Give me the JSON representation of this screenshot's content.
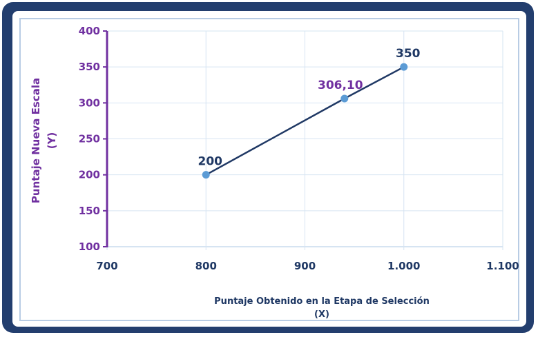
{
  "chart_data": {
    "type": "line",
    "title": "",
    "xlabel_line1": "Puntaje Obtenido en la Etapa de Selección",
    "xlabel_line2": "(X)",
    "ylabel_line1": "Puntaje Nueva Escala",
    "ylabel_line2": "(Y)",
    "xlim": [
      700,
      1100
    ],
    "ylim": [
      100,
      400
    ],
    "x_ticks": [
      700,
      800,
      900,
      1000,
      1100
    ],
    "x_tick_labels": [
      "700",
      "800",
      "900",
      "1.000",
      "1.100"
    ],
    "y_ticks": [
      100,
      150,
      200,
      250,
      300,
      350,
      400
    ],
    "y_tick_labels": [
      "100",
      "150",
      "200",
      "250",
      "300",
      "350",
      "400"
    ],
    "grid": true,
    "legend": "none",
    "series": [
      {
        "x": [
          800,
          940,
          1000
        ],
        "y": [
          200,
          306.1,
          350
        ],
        "labels": [
          "200",
          "306,10",
          "350"
        ],
        "label_colors": [
          "#1f3864",
          "#7030a0",
          "#1f3864"
        ]
      }
    ],
    "colors": {
      "line": "#1f3864",
      "marker": "#5b9bd5",
      "grid": "#d6e4f2",
      "y_axis": "#7030a0",
      "frame": "#233e6e",
      "inner_border": "#b8cce4"
    }
  }
}
